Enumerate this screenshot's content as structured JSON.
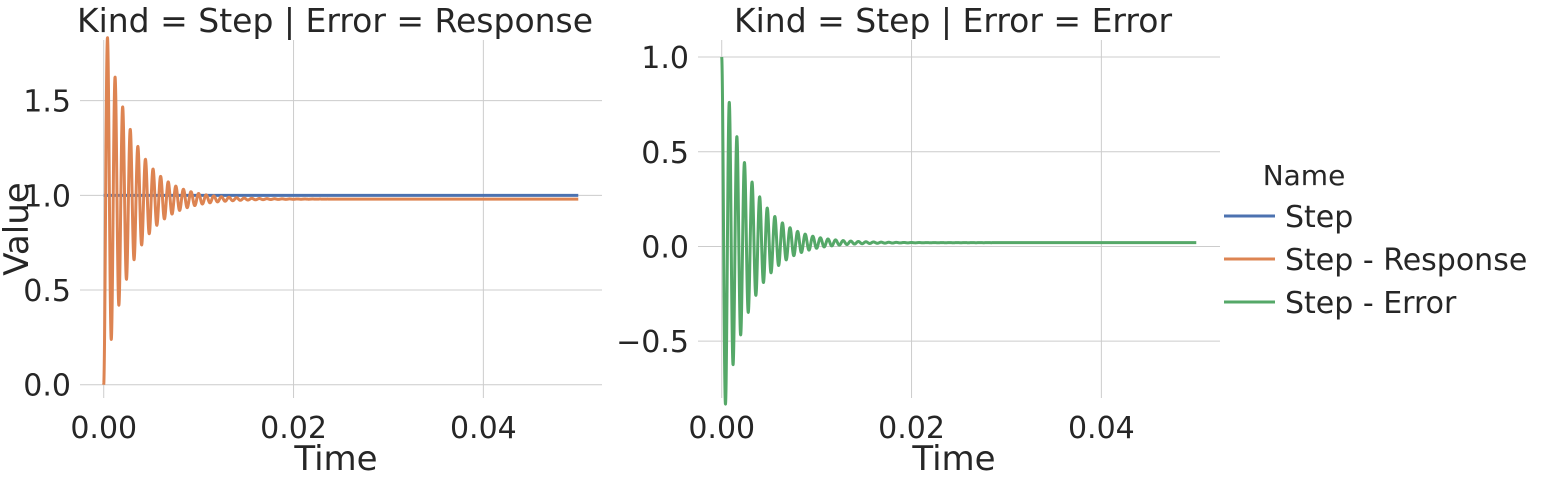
{
  "chart_data": [
    {
      "type": "line",
      "title": "Kind = Step | Error = Response",
      "xlabel": "Time",
      "ylabel": "Value",
      "xlim": [
        -0.0025,
        0.0525
      ],
      "ylim": [
        -0.07,
        1.82
      ],
      "xticks": [
        0.0,
        0.02,
        0.04
      ],
      "xtick_labels": [
        "0.00",
        "0.02",
        "0.04"
      ],
      "yticks": [
        0.0,
        0.5,
        1.0,
        1.5
      ],
      "ytick_labels": [
        "0.0",
        "0.5",
        "1.0",
        "1.5"
      ],
      "grid": true,
      "series": [
        {
          "name": "Step",
          "color": "#4c72b0",
          "x": [
            0.0,
            0.05
          ],
          "y": [
            1.0,
            1.0
          ]
        },
        {
          "name": "Step - Response",
          "color": "#dd8452",
          "model": {
            "kind": "damped_response",
            "final": 0.98,
            "freq_hz": 1250,
            "decay_per_s": 350,
            "x_start": 0.0,
            "x_end": 0.05
          }
        }
      ]
    },
    {
      "type": "line",
      "title": "Kind = Step | Error = Error",
      "xlabel": "Time",
      "ylabel": "",
      "xlim": [
        -0.0025,
        0.0525
      ],
      "ylim": [
        -0.8,
        1.09
      ],
      "xticks": [
        0.0,
        0.02,
        0.04
      ],
      "xtick_labels": [
        "0.00",
        "0.02",
        "0.04"
      ],
      "yticks": [
        -0.5,
        0.0,
        0.5,
        1.0
      ],
      "ytick_labels": [
        "−0.5",
        "0.0",
        "0.5",
        "1.0"
      ],
      "grid": true,
      "series": [
        {
          "name": "Step - Error",
          "color": "#55a868",
          "model": {
            "kind": "damped_error",
            "final": 0.02,
            "freq_hz": 1250,
            "decay_per_s": 350,
            "x_start": 0.0,
            "x_end": 0.05
          }
        }
      ]
    }
  ],
  "legend": {
    "title": "Name",
    "placement": "right",
    "entries": [
      {
        "label": "Step",
        "color": "#4c72b0"
      },
      {
        "label": "Step - Response",
        "color": "#dd8452"
      },
      {
        "label": "Step - Error",
        "color": "#55a868"
      }
    ]
  }
}
